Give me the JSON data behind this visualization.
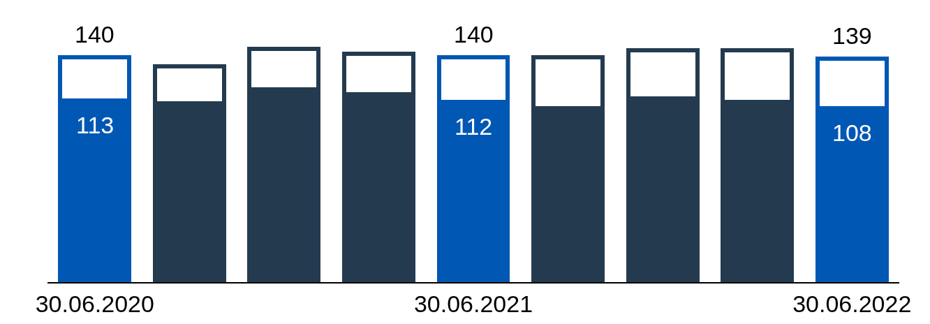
{
  "chart_data": {
    "type": "bar",
    "stacked": true,
    "categories": [
      "30.06.2020",
      null,
      null,
      null,
      "30.06.2021",
      null,
      null,
      null,
      "30.06.2022"
    ],
    "series": [
      {
        "colors": [
          "#0057b4",
          "#243b4f",
          "#243b4f",
          "#243b4f",
          "#0057b4",
          "#243b4f",
          "#243b4f",
          "#243b4f",
          "#0057b4"
        ],
        "values": [
          113,
          111,
          120,
          117,
          112,
          108,
          114,
          112,
          108
        ],
        "value_labels": [
          "113",
          null,
          null,
          null,
          "112",
          null,
          null,
          null,
          "108"
        ]
      },
      {
        "color": "#ffffff",
        "values": [
          27,
          23,
          25,
          25,
          28,
          32,
          30,
          32,
          31
        ]
      }
    ],
    "totals": [
      "140",
      null,
      null,
      null,
      "140",
      null,
      null,
      null,
      "139"
    ]
  }
}
